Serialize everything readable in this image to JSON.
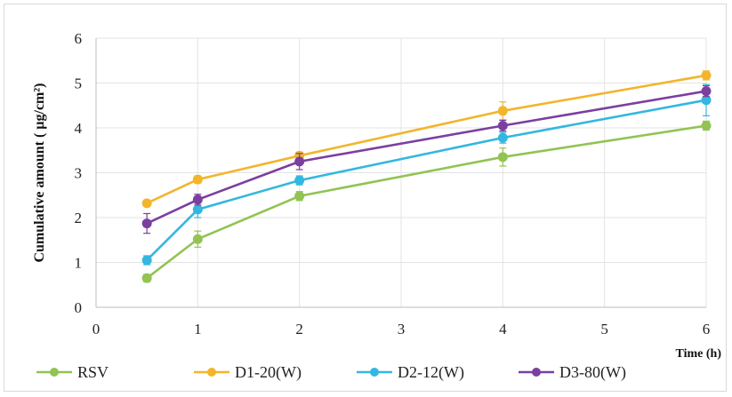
{
  "chart_data": {
    "type": "line",
    "title": "",
    "xlabel": "Time (h)",
    "ylabel": "Cumulative amount ( µg/cm²)",
    "xlim": [
      0,
      6
    ],
    "ylim": [
      0,
      6
    ],
    "x_ticks": [
      0,
      1,
      2,
      3,
      4,
      5,
      6
    ],
    "y_ticks": [
      0,
      1,
      2,
      3,
      4,
      5,
      6
    ],
    "grid": true,
    "legend_position": "bottom",
    "x": [
      0.5,
      1,
      2,
      4,
      6
    ],
    "series": [
      {
        "name": "RSV",
        "color": "#92c353",
        "values": [
          0.65,
          1.52,
          2.48,
          3.35,
          4.05
        ],
        "errors": [
          0.08,
          0.18,
          0.1,
          0.2,
          0.1
        ]
      },
      {
        "name": "D1-20(W)",
        "color": "#f2b52c",
        "values": [
          2.32,
          2.85,
          3.38,
          4.38,
          5.17
        ],
        "errors": [
          0.06,
          0.08,
          0.08,
          0.2,
          0.1
        ]
      },
      {
        "name": "D2-12(W)",
        "color": "#33b7e0",
        "values": [
          1.05,
          2.18,
          2.83,
          3.78,
          4.62
        ],
        "errors": [
          0.1,
          0.18,
          0.1,
          0.12,
          0.35
        ]
      },
      {
        "name": "D3-80(W)",
        "color": "#7b3fa0",
        "values": [
          1.87,
          2.4,
          3.25,
          4.05,
          4.82
        ],
        "errors": [
          0.22,
          0.12,
          0.18,
          0.12,
          0.12
        ]
      }
    ]
  }
}
